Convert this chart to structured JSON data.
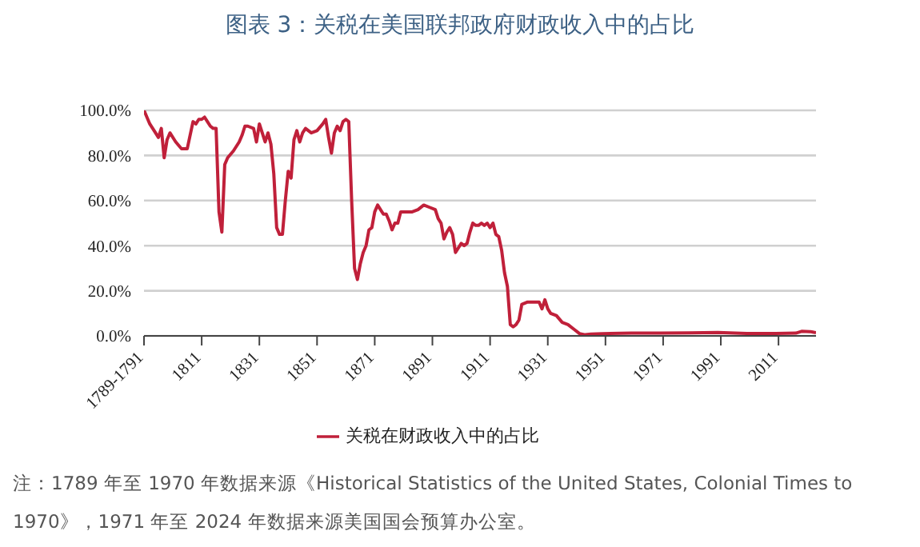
{
  "chart_data": {
    "type": "line",
    "title": "图表 3：关税在美国联邦政府财政收入中的占比",
    "x": [
      1791,
      1793,
      1795,
      1796,
      1797,
      1798,
      1799,
      1800,
      1802,
      1804,
      1806,
      1808,
      1809,
      1810,
      1811,
      1812,
      1813,
      1814,
      1815,
      1816,
      1817,
      1818,
      1819,
      1820,
      1822,
      1824,
      1825,
      1826,
      1827,
      1829,
      1830,
      1831,
      1832,
      1833,
      1834,
      1835,
      1836,
      1837,
      1838,
      1839,
      1840,
      1841,
      1842,
      1843,
      1844,
      1845,
      1846,
      1847,
      1849,
      1851,
      1853,
      1854,
      1855,
      1856,
      1857,
      1858,
      1859,
      1860,
      1861,
      1862,
      1863,
      1864,
      1865,
      1866,
      1867,
      1868,
      1869,
      1870,
      1871,
      1872,
      1873,
      1874,
      1875,
      1876,
      1877,
      1878,
      1879,
      1880,
      1882,
      1884,
      1886,
      1888,
      1890,
      1892,
      1893,
      1894,
      1895,
      1896,
      1897,
      1898,
      1899,
      1900,
      1901,
      1902,
      1903,
      1904,
      1905,
      1906,
      1907,
      1908,
      1909,
      1910,
      1911,
      1912,
      1913,
      1914,
      1915,
      1916,
      1917,
      1918,
      1919,
      1920,
      1921,
      1922,
      1924,
      1926,
      1928,
      1929,
      1930,
      1931,
      1932,
      1934,
      1936,
      1938,
      1940,
      1942,
      1944,
      1946,
      1950,
      1960,
      1970,
      1980,
      1990,
      2000,
      2010,
      2017,
      2019,
      2022,
      2024
    ],
    "series": [
      {
        "name": "关税在财政收入中的占比",
        "color": "#c0203a",
        "values": [
          100,
          94,
          90,
          88,
          92,
          79,
          87,
          90,
          86,
          83,
          83,
          95,
          94,
          96,
          96,
          97,
          95,
          93,
          92,
          92,
          55,
          46,
          76,
          79,
          82,
          86,
          89,
          93,
          93,
          92,
          86,
          94,
          90,
          86,
          90,
          85,
          72,
          48,
          45,
          45,
          60,
          73,
          70,
          87,
          91,
          86,
          90,
          92,
          90,
          91,
          94,
          96,
          88,
          81,
          90,
          93,
          91,
          95,
          96,
          95,
          60,
          30,
          25,
          32,
          37,
          40,
          47,
          48,
          55,
          58,
          56,
          54,
          54,
          51,
          47,
          50,
          50,
          55,
          55,
          55,
          56,
          58,
          57,
          56,
          52,
          50,
          43,
          46,
          48,
          45,
          37,
          39,
          41,
          40,
          41,
          46,
          50,
          49,
          49,
          50,
          49,
          50,
          48,
          50,
          45,
          44,
          38,
          28,
          22,
          5,
          4,
          5,
          7,
          14,
          15,
          15,
          15,
          12,
          16,
          12,
          10,
          9,
          6,
          5,
          3,
          1,
          0.5,
          0.8,
          1,
          1.2,
          1.2,
          1.3,
          1.5,
          1.1,
          1.1,
          1.2,
          2,
          1.9,
          1.4
        ]
      }
    ],
    "xlim": [
      1791,
      2024
    ],
    "xticks": [
      {
        "value": 1791,
        "label": "1789-1791"
      },
      1811,
      1831,
      1851,
      1871,
      1891,
      1911,
      1931,
      1951,
      1971,
      1991,
      2011
    ],
    "ylim": [
      0,
      100
    ],
    "yticks": [
      {
        "value": 0,
        "label": "0.0%"
      },
      {
        "value": 20,
        "label": "20.0%"
      },
      {
        "value": 40,
        "label": "40.0%"
      },
      {
        "value": 60,
        "label": "60.0%"
      },
      {
        "value": 80,
        "label": "80.0%"
      },
      {
        "value": 100,
        "label": "100.0%"
      }
    ],
    "grid": "y",
    "legend": "bottom",
    "marker": "none",
    "line_style": "solid",
    "annotations": [
      "注：1789 年至 1970 年数据来源《Historical Statistics of the United States, Colonial Times to 1970》，1971 年至 2024 年数据来源美国国会预算办公室。"
    ]
  }
}
